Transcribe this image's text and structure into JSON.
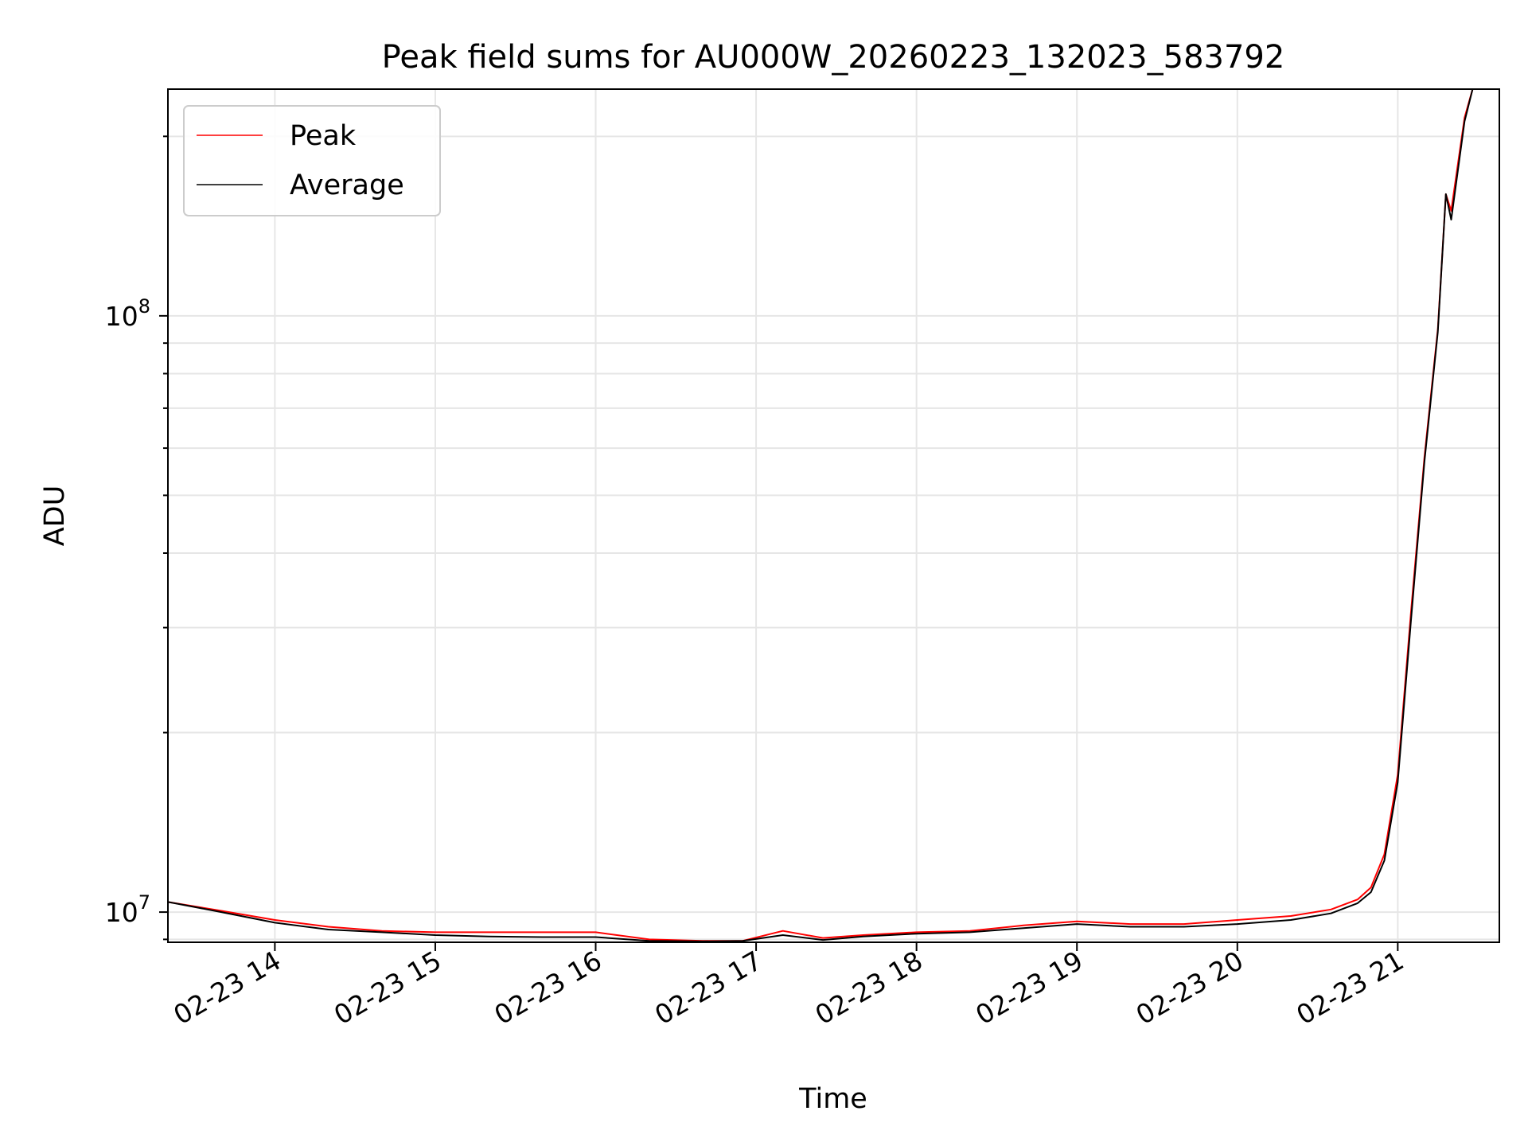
{
  "chart_data": {
    "type": "line",
    "title": "Peak field sums for AU000W_20260223_132023_583792",
    "xlabel": "Time",
    "ylabel": "ADU",
    "yscale": "log",
    "xlim": [
      "2026-02-23T13:20",
      "2026-02-23T21:38"
    ],
    "ylim": [
      8900000,
      240000000
    ],
    "x_ticks": [
      {
        "value": "2026-02-23T14:00",
        "label": "02-23 14"
      },
      {
        "value": "2026-02-23T15:00",
        "label": "02-23 15"
      },
      {
        "value": "2026-02-23T16:00",
        "label": "02-23 16"
      },
      {
        "value": "2026-02-23T17:00",
        "label": "02-23 17"
      },
      {
        "value": "2026-02-23T18:00",
        "label": "02-23 18"
      },
      {
        "value": "2026-02-23T19:00",
        "label": "02-23 19"
      },
      {
        "value": "2026-02-23T20:00",
        "label": "02-23 20"
      },
      {
        "value": "2026-02-23T21:00",
        "label": "02-23 21"
      }
    ],
    "y_ticks": [
      {
        "value": 10000000,
        "base": "10",
        "exp": "7"
      },
      {
        "value": 100000000,
        "base": "10",
        "exp": "8"
      }
    ],
    "grid": true,
    "legend_position": "top-left",
    "x": [
      "2026-02-23T13:20",
      "2026-02-23T13:40",
      "2026-02-23T14:00",
      "2026-02-23T14:20",
      "2026-02-23T14:40",
      "2026-02-23T15:00",
      "2026-02-23T15:20",
      "2026-02-23T15:40",
      "2026-02-23T16:00",
      "2026-02-23T16:20",
      "2026-02-23T16:40",
      "2026-02-23T16:55",
      "2026-02-23T17:10",
      "2026-02-23T17:25",
      "2026-02-23T17:40",
      "2026-02-23T18:00",
      "2026-02-23T18:20",
      "2026-02-23T18:40",
      "2026-02-23T19:00",
      "2026-02-23T19:20",
      "2026-02-23T19:40",
      "2026-02-23T20:00",
      "2026-02-23T20:20",
      "2026-02-23T20:35",
      "2026-02-23T20:45",
      "2026-02-23T20:50",
      "2026-02-23T20:55",
      "2026-02-23T21:00",
      "2026-02-23T21:05",
      "2026-02-23T21:10",
      "2026-02-23T21:15",
      "2026-02-23T21:18",
      "2026-02-23T21:20",
      "2026-02-23T21:25",
      "2026-02-23T21:28"
    ],
    "series": [
      {
        "name": "Peak",
        "color": "#ff0000",
        "values": [
          10400000,
          10050000,
          9700000,
          9450000,
          9300000,
          9250000,
          9250000,
          9250000,
          9250000,
          9000000,
          8950000,
          8950000,
          9300000,
          9050000,
          9150000,
          9250000,
          9300000,
          9500000,
          9650000,
          9550000,
          9550000,
          9700000,
          9850000,
          10100000,
          10500000,
          11000000,
          12500000,
          17000000,
          32000000,
          58000000,
          95000000,
          160000000,
          150000000,
          215000000,
          240000000
        ]
      },
      {
        "name": "Average",
        "color": "#000000",
        "values": [
          10400000,
          10000000,
          9600000,
          9350000,
          9250000,
          9150000,
          9100000,
          9080000,
          9080000,
          8950000,
          8930000,
          8950000,
          9150000,
          8980000,
          9100000,
          9200000,
          9250000,
          9400000,
          9550000,
          9450000,
          9450000,
          9550000,
          9700000,
          9950000,
          10350000,
          10800000,
          12200000,
          16500000,
          31000000,
          57000000,
          94000000,
          160000000,
          145000000,
          212000000,
          240000000
        ]
      }
    ]
  }
}
